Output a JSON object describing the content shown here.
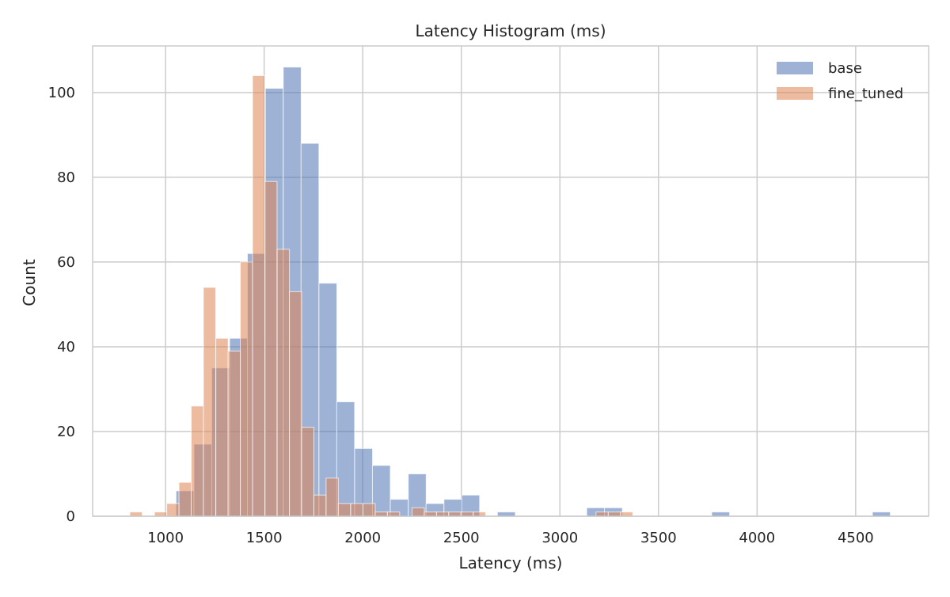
{
  "chart_data": {
    "type": "histogram",
    "title": "Latency Histogram (ms)",
    "xlabel": "Latency (ms)",
    "ylabel": "Count",
    "xlim": [
      630,
      4870
    ],
    "ylim": [
      0,
      111
    ],
    "xticks": [
      1000,
      1500,
      2000,
      2500,
      3000,
      3500,
      4000,
      4500
    ],
    "yticks": [
      0,
      20,
      40,
      60,
      80,
      100
    ],
    "grid": true,
    "legend_position": "top-right",
    "series": [
      {
        "name": "base",
        "color": "#4c72b0",
        "alpha": 0.55,
        "bin_width": 90.6,
        "bins": [
          {
            "start": 1053,
            "count": 6
          },
          {
            "start": 1144,
            "count": 17
          },
          {
            "start": 1234,
            "count": 35
          },
          {
            "start": 1325,
            "count": 42
          },
          {
            "start": 1415,
            "count": 62
          },
          {
            "start": 1506,
            "count": 101
          },
          {
            "start": 1597,
            "count": 106
          },
          {
            "start": 1687,
            "count": 88
          },
          {
            "start": 1778,
            "count": 55
          },
          {
            "start": 1868,
            "count": 27
          },
          {
            "start": 1959,
            "count": 16
          },
          {
            "start": 2049,
            "count": 12
          },
          {
            "start": 2140,
            "count": 4
          },
          {
            "start": 2231,
            "count": 10
          },
          {
            "start": 2321,
            "count": 3
          },
          {
            "start": 2412,
            "count": 4
          },
          {
            "start": 2502,
            "count": 5
          },
          {
            "start": 2683,
            "count": 1
          },
          {
            "start": 3136,
            "count": 2
          },
          {
            "start": 3226,
            "count": 2
          },
          {
            "start": 3770,
            "count": 1
          },
          {
            "start": 4585,
            "count": 1
          }
        ]
      },
      {
        "name": "fine_tuned",
        "color": "#dd8452",
        "alpha": 0.55,
        "bin_width": 62.2,
        "bins": [
          {
            "start": 819,
            "count": 1
          },
          {
            "start": 944,
            "count": 1
          },
          {
            "start": 1006,
            "count": 3
          },
          {
            "start": 1068,
            "count": 8
          },
          {
            "start": 1130,
            "count": 26
          },
          {
            "start": 1192,
            "count": 54
          },
          {
            "start": 1255,
            "count": 42
          },
          {
            "start": 1317,
            "count": 39
          },
          {
            "start": 1379,
            "count": 60
          },
          {
            "start": 1441,
            "count": 104
          },
          {
            "start": 1503,
            "count": 79
          },
          {
            "start": 1566,
            "count": 63
          },
          {
            "start": 1628,
            "count": 53
          },
          {
            "start": 1690,
            "count": 21
          },
          {
            "start": 1752,
            "count": 5
          },
          {
            "start": 1814,
            "count": 9
          },
          {
            "start": 1876,
            "count": 3
          },
          {
            "start": 1939,
            "count": 3
          },
          {
            "start": 2001,
            "count": 3
          },
          {
            "start": 2063,
            "count": 1
          },
          {
            "start": 2125,
            "count": 1
          },
          {
            "start": 2250,
            "count": 2
          },
          {
            "start": 2312,
            "count": 1
          },
          {
            "start": 2374,
            "count": 1
          },
          {
            "start": 2436,
            "count": 1
          },
          {
            "start": 2498,
            "count": 1
          },
          {
            "start": 2561,
            "count": 1
          },
          {
            "start": 3183,
            "count": 1
          },
          {
            "start": 3245,
            "count": 1
          },
          {
            "start": 3307,
            "count": 1
          }
        ]
      }
    ]
  }
}
